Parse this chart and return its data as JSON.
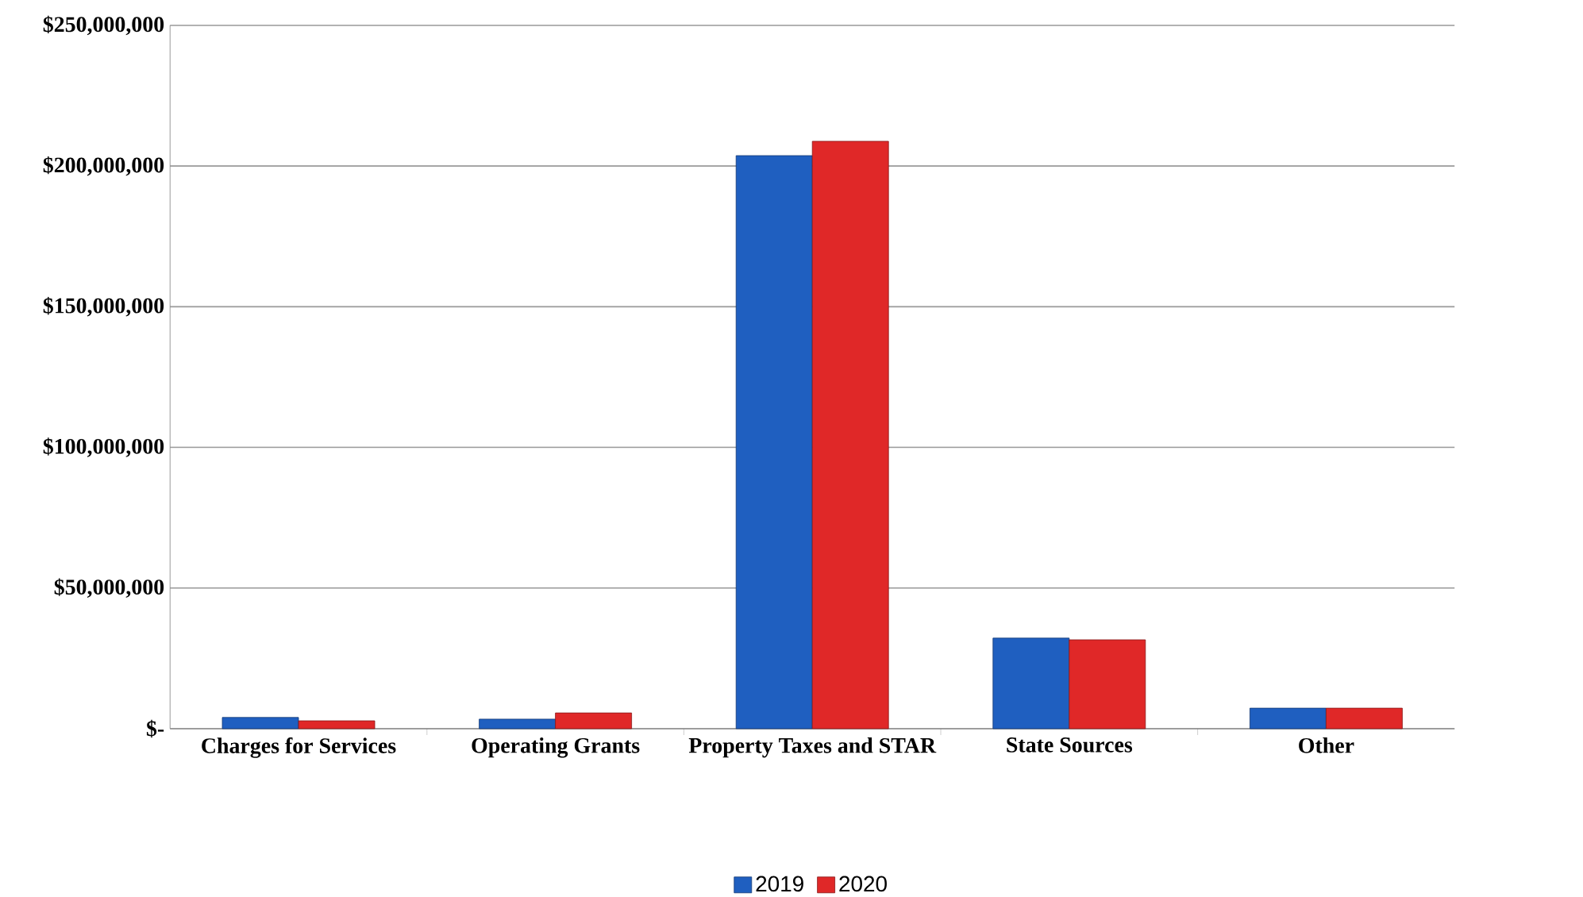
{
  "chart_data": {
    "type": "bar",
    "categories": [
      "Charges for Services",
      "Operating Grants",
      "Property Taxes and STAR",
      "State Sources",
      "Other"
    ],
    "series": [
      {
        "name": "2019",
        "color": "#1f5fc0",
        "values": [
          4000000,
          3400000,
          203700000,
          32200000,
          7300000
        ]
      },
      {
        "name": "2020",
        "color": "#e02828",
        "values": [
          2800000,
          5600000,
          208800000,
          31600000,
          7300000
        ]
      }
    ],
    "ylim": [
      0,
      250000000
    ],
    "yticks": [
      {
        "value": 0,
        "label": "$-"
      },
      {
        "value": 50000000,
        "label": "$50,000,000"
      },
      {
        "value": 100000000,
        "label": "$100,000,000"
      },
      {
        "value": 150000000,
        "label": "$150,000,000"
      },
      {
        "value": 200000000,
        "label": "$200,000,000"
      },
      {
        "value": 250000000,
        "label": "$250,000,000"
      }
    ],
    "grid": "y",
    "legend": "bottom"
  }
}
